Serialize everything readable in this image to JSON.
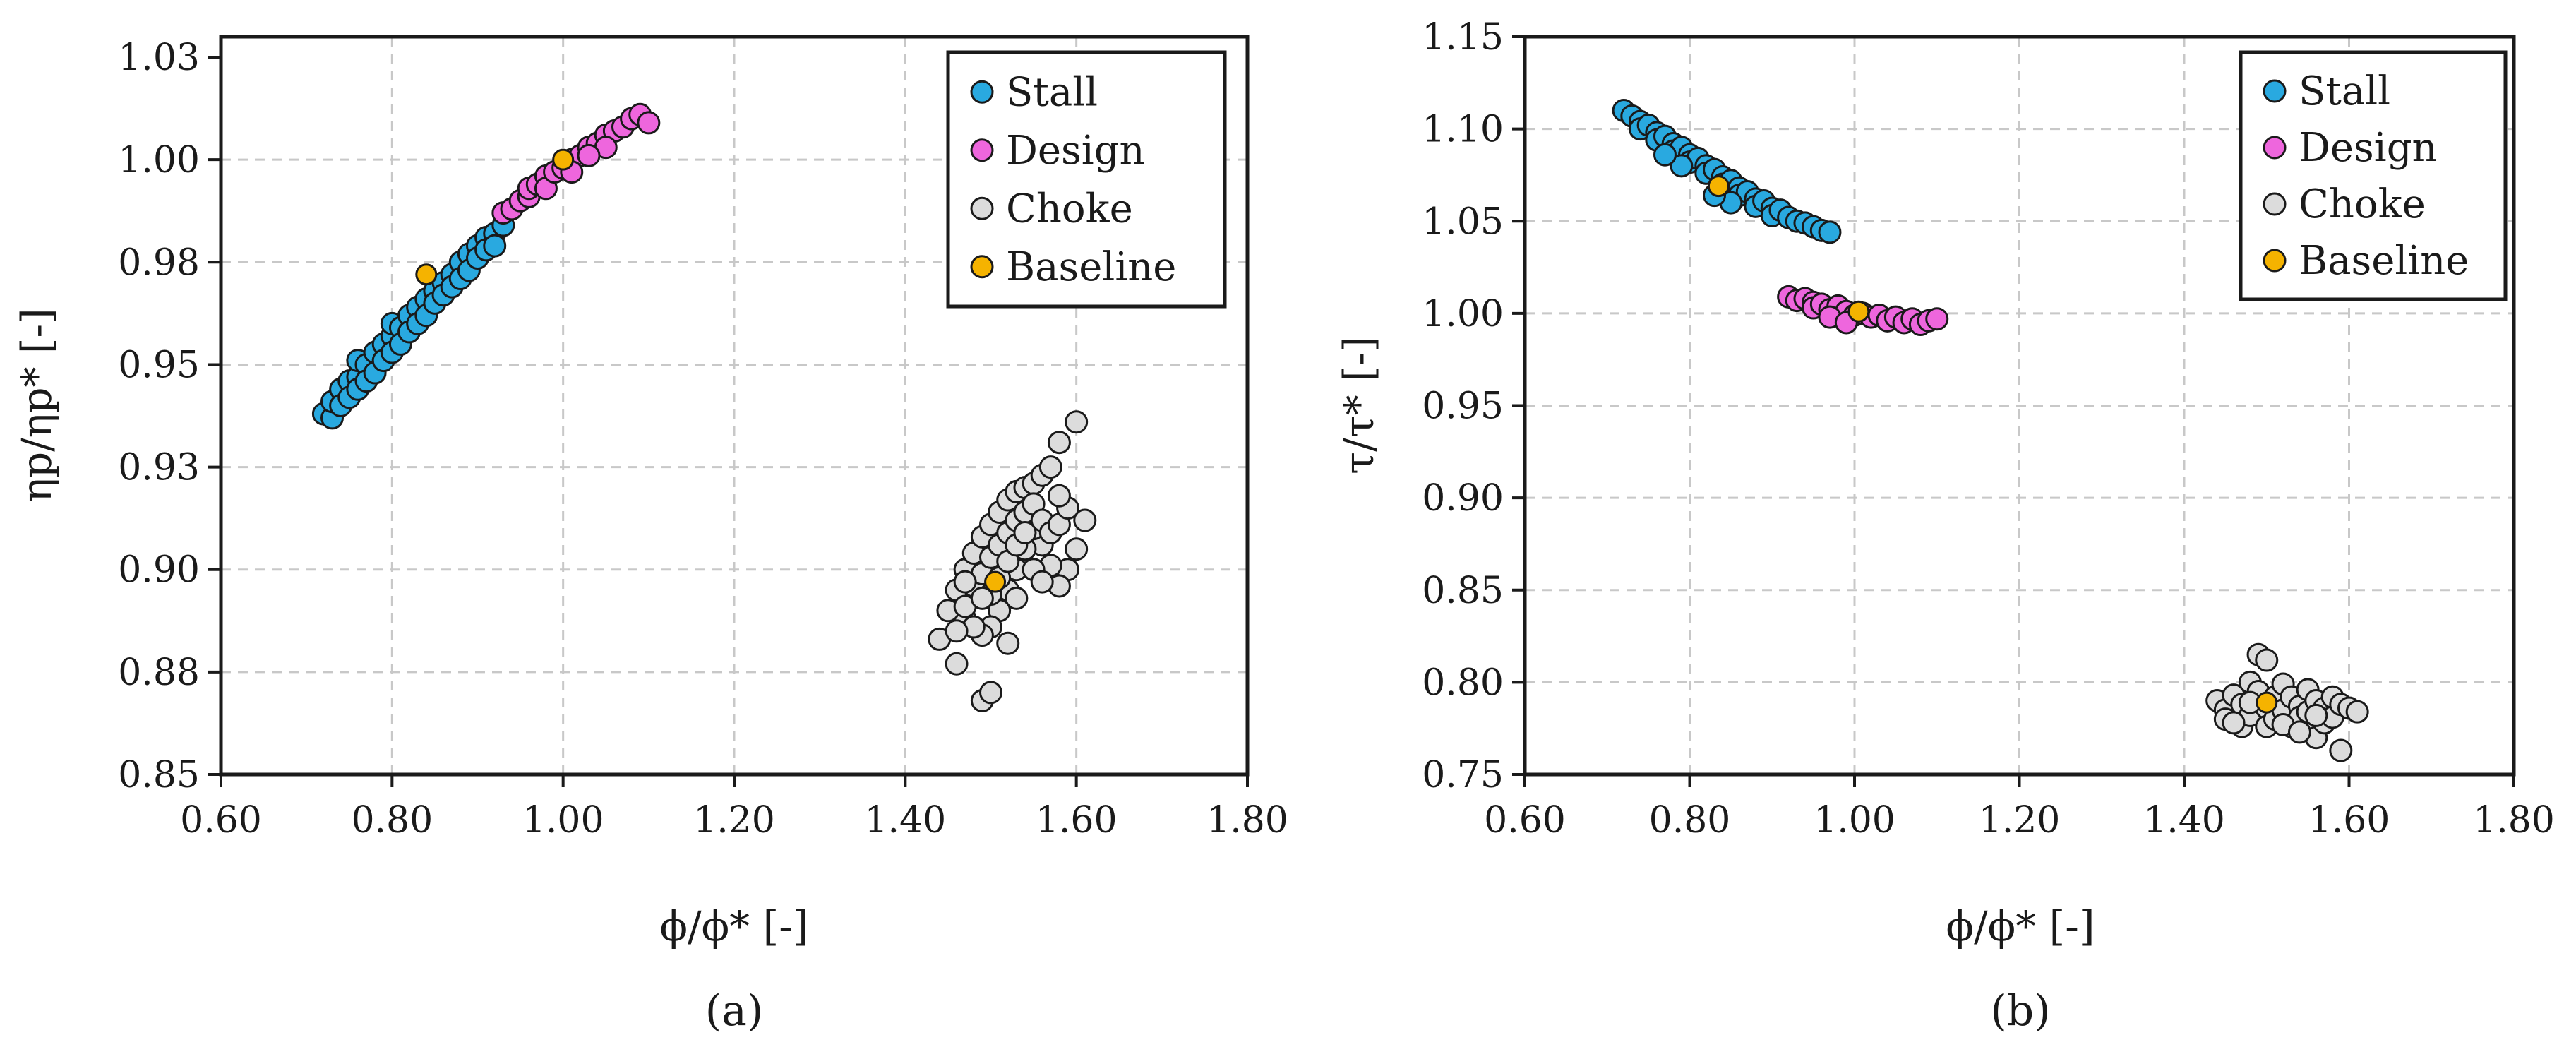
{
  "chart_data": [
    {
      "type": "scatter",
      "panel_label": "(a)",
      "xlabel": "ϕ/ϕ* [-]",
      "ylabel": "ηp/ηp* [-]",
      "xlim": [
        0.6,
        1.8
      ],
      "ylim": [
        0.85,
        1.03
      ],
      "xticks": [
        0.6,
        0.8,
        1.0,
        1.2,
        1.4,
        1.6,
        1.8
      ],
      "xtick_labels": [
        "0.60",
        "0.80",
        "1.00",
        "1.20",
        "1.40",
        "1.60",
        "1.80"
      ],
      "yticks": [
        0.85,
        0.875,
        0.9,
        0.925,
        0.95,
        0.975,
        1.0,
        1.025
      ],
      "ytick_labels": [
        "0.85",
        "0.88",
        "0.90",
        "0.93",
        "0.95",
        "0.98",
        "1.00",
        "1.03"
      ],
      "grid": true,
      "legend_position": "top-right",
      "series": [
        {
          "name": "Stall",
          "color": "#29a9e0",
          "points": [
            [
              0.72,
              0.938
            ],
            [
              0.73,
              0.937
            ],
            [
              0.73,
              0.941
            ],
            [
              0.74,
              0.944
            ],
            [
              0.74,
              0.94
            ],
            [
              0.75,
              0.946
            ],
            [
              0.75,
              0.942
            ],
            [
              0.76,
              0.947
            ],
            [
              0.76,
              0.951
            ],
            [
              0.76,
              0.944
            ],
            [
              0.77,
              0.95
            ],
            [
              0.77,
              0.946
            ],
            [
              0.78,
              0.953
            ],
            [
              0.78,
              0.948
            ],
            [
              0.79,
              0.955
            ],
            [
              0.79,
              0.951
            ],
            [
              0.8,
              0.957
            ],
            [
              0.8,
              0.953
            ],
            [
              0.8,
              0.96
            ],
            [
              0.81,
              0.959
            ],
            [
              0.81,
              0.955
            ],
            [
              0.82,
              0.962
            ],
            [
              0.82,
              0.958
            ],
            [
              0.83,
              0.964
            ],
            [
              0.83,
              0.96
            ],
            [
              0.84,
              0.966
            ],
            [
              0.84,
              0.962
            ],
            [
              0.85,
              0.968
            ],
            [
              0.85,
              0.965
            ],
            [
              0.86,
              0.97
            ],
            [
              0.86,
              0.967
            ],
            [
              0.87,
              0.972
            ],
            [
              0.87,
              0.969
            ],
            [
              0.88,
              0.975
            ],
            [
              0.88,
              0.971
            ],
            [
              0.89,
              0.977
            ],
            [
              0.89,
              0.973
            ],
            [
              0.9,
              0.979
            ],
            [
              0.9,
              0.976
            ],
            [
              0.91,
              0.981
            ],
            [
              0.91,
              0.978
            ],
            [
              0.92,
              0.982
            ],
            [
              0.92,
              0.979
            ],
            [
              0.93,
              0.984
            ]
          ]
        },
        {
          "name": "Design",
          "color": "#ee66dd",
          "points": [
            [
              0.93,
              0.987
            ],
            [
              0.94,
              0.988
            ],
            [
              0.95,
              0.99
            ],
            [
              0.96,
              0.991
            ],
            [
              0.96,
              0.993
            ],
            [
              0.97,
              0.994
            ],
            [
              0.98,
              0.996
            ],
            [
              0.98,
              0.993
            ],
            [
              0.99,
              0.997
            ],
            [
              1.0,
              0.998
            ],
            [
              1.01,
              1.0
            ],
            [
              1.02,
              1.001
            ],
            [
              1.03,
              1.003
            ],
            [
              1.04,
              1.004
            ],
            [
              1.05,
              1.006
            ],
            [
              1.06,
              1.007
            ],
            [
              1.07,
              1.008
            ],
            [
              1.08,
              1.01
            ],
            [
              1.09,
              1.011
            ],
            [
              1.1,
              1.009
            ],
            [
              1.05,
              1.003
            ],
            [
              1.03,
              1.001
            ],
            [
              1.01,
              0.997
            ]
          ]
        },
        {
          "name": "Choke",
          "color": "#dcdcdc",
          "points": [
            [
              1.44,
              0.883
            ],
            [
              1.46,
              0.877
            ],
            [
              1.47,
              0.888
            ],
            [
              1.49,
              0.868
            ],
            [
              1.5,
              0.87
            ],
            [
              1.52,
              0.882
            ],
            [
              1.45,
              0.89
            ],
            [
              1.46,
              0.895
            ],
            [
              1.47,
              0.9
            ],
            [
              1.48,
              0.904
            ],
            [
              1.49,
              0.908
            ],
            [
              1.5,
              0.911
            ],
            [
              1.51,
              0.914
            ],
            [
              1.52,
              0.917
            ],
            [
              1.53,
              0.919
            ],
            [
              1.54,
              0.92
            ],
            [
              1.55,
              0.921
            ],
            [
              1.56,
              0.923
            ],
            [
              1.57,
              0.925
            ],
            [
              1.58,
              0.931
            ],
            [
              1.6,
              0.936
            ],
            [
              1.61,
              0.912
            ],
            [
              1.6,
              0.905
            ],
            [
              1.59,
              0.9
            ],
            [
              1.58,
              0.896
            ],
            [
              1.57,
              0.901
            ],
            [
              1.56,
              0.906
            ],
            [
              1.55,
              0.91
            ],
            [
              1.54,
              0.905
            ],
            [
              1.53,
              0.9
            ],
            [
              1.52,
              0.895
            ],
            [
              1.51,
              0.89
            ],
            [
              1.5,
              0.886
            ],
            [
              1.49,
              0.884
            ],
            [
              1.48,
              0.886
            ],
            [
              1.47,
              0.891
            ],
            [
              1.48,
              0.896
            ],
            [
              1.49,
              0.899
            ],
            [
              1.5,
              0.903
            ],
            [
              1.51,
              0.906
            ],
            [
              1.52,
              0.909
            ],
            [
              1.53,
              0.912
            ],
            [
              1.54,
              0.914
            ],
            [
              1.55,
              0.916
            ],
            [
              1.56,
              0.912
            ],
            [
              1.57,
              0.909
            ],
            [
              1.58,
              0.911
            ],
            [
              1.59,
              0.915
            ],
            [
              1.5,
              0.894
            ],
            [
              1.51,
              0.898
            ],
            [
              1.52,
              0.902
            ],
            [
              1.53,
              0.906
            ],
            [
              1.54,
              0.909
            ],
            [
              1.49,
              0.893
            ],
            [
              1.47,
              0.897
            ],
            [
              1.46,
              0.885
            ],
            [
              1.55,
              0.9
            ],
            [
              1.56,
              0.897
            ],
            [
              1.53,
              0.893
            ],
            [
              1.58,
              0.918
            ]
          ]
        },
        {
          "name": "Baseline",
          "color": "#f5b300",
          "points": [
            [
              0.84,
              0.972
            ],
            [
              1.0,
              1.0
            ],
            [
              1.505,
              0.897
            ]
          ]
        }
      ]
    },
    {
      "type": "scatter",
      "panel_label": "(b)",
      "xlabel": "ϕ/ϕ* [-]",
      "ylabel": "τ/τ* [-]",
      "xlim": [
        0.6,
        1.8
      ],
      "ylim": [
        0.75,
        1.15
      ],
      "xticks": [
        0.6,
        0.8,
        1.0,
        1.2,
        1.4,
        1.6,
        1.8
      ],
      "xtick_labels": [
        "0.60",
        "0.80",
        "1.00",
        "1.20",
        "1.40",
        "1.60",
        "1.80"
      ],
      "yticks": [
        0.75,
        0.8,
        0.85,
        0.9,
        0.95,
        1.0,
        1.05,
        1.1,
        1.15
      ],
      "ytick_labels": [
        "0.75",
        "0.80",
        "0.85",
        "0.90",
        "0.95",
        "1.00",
        "1.05",
        "1.10",
        "1.15"
      ],
      "grid": true,
      "legend_position": "top-right",
      "series": [
        {
          "name": "Stall",
          "color": "#29a9e0",
          "points": [
            [
              0.72,
              1.11
            ],
            [
              0.73,
              1.107
            ],
            [
              0.74,
              1.104
            ],
            [
              0.74,
              1.1
            ],
            [
              0.75,
              1.102
            ],
            [
              0.76,
              1.098
            ],
            [
              0.76,
              1.094
            ],
            [
              0.77,
              1.096
            ],
            [
              0.78,
              1.092
            ],
            [
              0.78,
              1.088
            ],
            [
              0.79,
              1.09
            ],
            [
              0.8,
              1.086
            ],
            [
              0.8,
              1.082
            ],
            [
              0.81,
              1.084
            ],
            [
              0.82,
              1.08
            ],
            [
              0.82,
              1.076
            ],
            [
              0.83,
              1.078
            ],
            [
              0.84,
              1.074
            ],
            [
              0.84,
              1.07
            ],
            [
              0.85,
              1.072
            ],
            [
              0.86,
              1.068
            ],
            [
              0.86,
              1.064
            ],
            [
              0.87,
              1.066
            ],
            [
              0.88,
              1.062
            ],
            [
              0.88,
              1.058
            ],
            [
              0.89,
              1.061
            ],
            [
              0.9,
              1.057
            ],
            [
              0.9,
              1.053
            ],
            [
              0.91,
              1.056
            ],
            [
              0.92,
              1.052
            ],
            [
              0.93,
              1.05
            ],
            [
              0.94,
              1.049
            ],
            [
              0.95,
              1.047
            ],
            [
              0.96,
              1.045
            ],
            [
              0.97,
              1.044
            ],
            [
              0.85,
              1.06
            ],
            [
              0.83,
              1.064
            ],
            [
              0.79,
              1.08
            ],
            [
              0.77,
              1.086
            ]
          ]
        },
        {
          "name": "Design",
          "color": "#ee66dd",
          "points": [
            [
              0.92,
              1.009
            ],
            [
              0.93,
              1.007
            ],
            [
              0.94,
              1.008
            ],
            [
              0.95,
              1.006
            ],
            [
              0.95,
              1.003
            ],
            [
              0.96,
              1.005
            ],
            [
              0.97,
              1.002
            ],
            [
              0.98,
              1.004
            ],
            [
              0.99,
              1.001
            ],
            [
              1.0,
              0.999
            ],
            [
              1.01,
              1.0
            ],
            [
              1.02,
              0.998
            ],
            [
              1.03,
              0.999
            ],
            [
              1.04,
              0.996
            ],
            [
              1.05,
              0.998
            ],
            [
              1.06,
              0.995
            ],
            [
              1.07,
              0.997
            ],
            [
              1.08,
              0.994
            ],
            [
              1.09,
              0.996
            ],
            [
              1.1,
              0.997
            ],
            [
              0.97,
              0.998
            ],
            [
              0.99,
              0.995
            ]
          ]
        },
        {
          "name": "Choke",
          "color": "#dcdcdc",
          "points": [
            [
              1.44,
              0.79
            ],
            [
              1.45,
              0.785
            ],
            [
              1.45,
              0.78
            ],
            [
              1.46,
              0.793
            ],
            [
              1.47,
              0.788
            ],
            [
              1.47,
              0.776
            ],
            [
              1.48,
              0.8
            ],
            [
              1.48,
              0.782
            ],
            [
              1.49,
              0.795
            ],
            [
              1.49,
              0.815
            ],
            [
              1.5,
              0.812
            ],
            [
              1.5,
              0.786
            ],
            [
              1.5,
              0.776
            ],
            [
              1.51,
              0.792
            ],
            [
              1.51,
              0.78
            ],
            [
              1.52,
              0.799
            ],
            [
              1.52,
              0.785
            ],
            [
              1.53,
              0.776
            ],
            [
              1.53,
              0.792
            ],
            [
              1.54,
              0.787
            ],
            [
              1.54,
              0.781
            ],
            [
              1.55,
              0.796
            ],
            [
              1.55,
              0.784
            ],
            [
              1.56,
              0.77
            ],
            [
              1.56,
              0.79
            ],
            [
              1.57,
              0.778
            ],
            [
              1.57,
              0.786
            ],
            [
              1.58,
              0.792
            ],
            [
              1.58,
              0.781
            ],
            [
              1.59,
              0.763
            ],
            [
              1.59,
              0.788
            ],
            [
              1.6,
              0.786
            ],
            [
              1.61,
              0.784
            ],
            [
              1.46,
              0.778
            ],
            [
              1.48,
              0.789
            ],
            [
              1.52,
              0.777
            ],
            [
              1.54,
              0.773
            ],
            [
              1.56,
              0.782
            ]
          ]
        },
        {
          "name": "Baseline",
          "color": "#f5b300",
          "points": [
            [
              0.835,
              1.069
            ],
            [
              1.005,
              1.001
            ],
            [
              1.5,
              0.789
            ]
          ]
        }
      ]
    }
  ]
}
